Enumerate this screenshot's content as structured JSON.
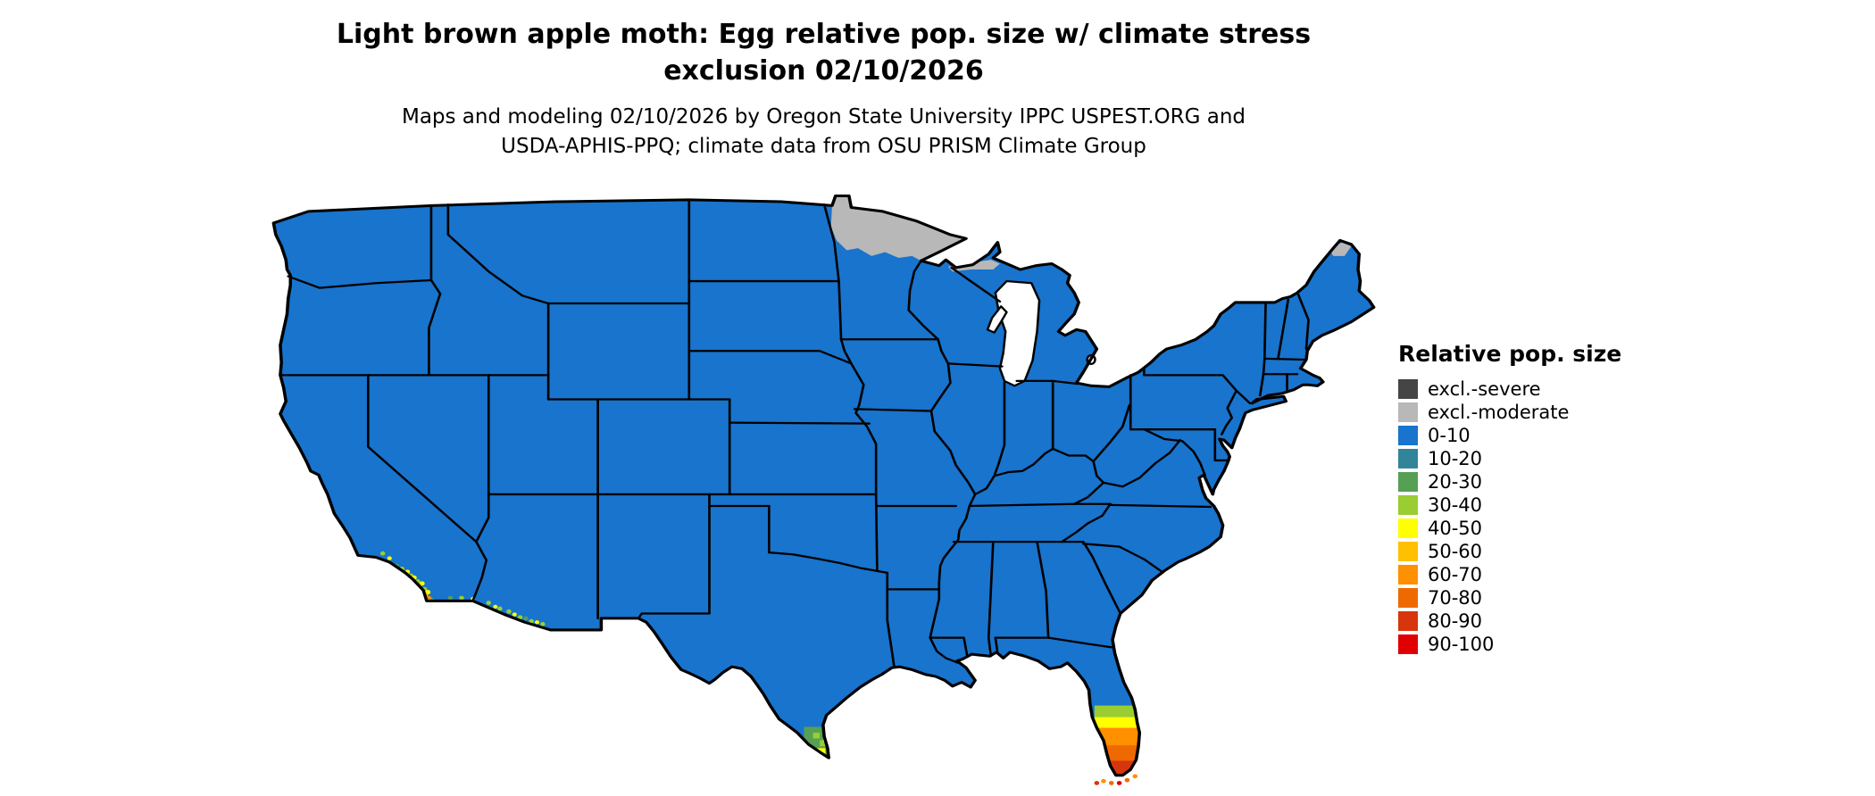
{
  "title": {
    "line1": "Light brown apple moth: Egg relative pop. size w/ climate stress",
    "line2": "exclusion 02/10/2026"
  },
  "subtitle": {
    "line1": "Maps and modeling 02/10/2026 by Oregon State University IPPC USPEST.ORG and",
    "line2": "USDA-APHIS-PPQ; climate data from OSU PRISM Climate Group"
  },
  "legend": {
    "title": "Relative pop. size",
    "items": [
      {
        "label": "excl.-severe",
        "color": "#454545"
      },
      {
        "label": "excl.-moderate",
        "color": "#b8b8b8"
      },
      {
        "label": "0-10",
        "color": "#1874cd"
      },
      {
        "label": "10-20",
        "color": "#31859b"
      },
      {
        "label": "20-30",
        "color": "#55a054"
      },
      {
        "label": "30-40",
        "color": "#9acd32"
      },
      {
        "label": "40-50",
        "color": "#ffff00"
      },
      {
        "label": "50-60",
        "color": "#ffc000"
      },
      {
        "label": "60-70",
        "color": "#ff9000"
      },
      {
        "label": "70-80",
        "color": "#ee6a00"
      },
      {
        "label": "80-90",
        "color": "#d7360c"
      },
      {
        "label": "90-100",
        "color": "#e00000"
      }
    ]
  },
  "map": {
    "border_color": "#000000",
    "water_color": "#ffffff",
    "regions": [
      {
        "name": "contiguous-us",
        "category": "0-10"
      },
      {
        "name": "northern-minnesota",
        "category": "excl.-moderate"
      },
      {
        "name": "lake-superior-south-shore",
        "category": "excl.-moderate"
      },
      {
        "name": "northern-maine",
        "category": "excl.-moderate"
      },
      {
        "name": "southern-california-coast",
        "category": "30-40 to 60-70 patches"
      },
      {
        "name": "southern-arizona-border",
        "category": "20-30 to 40-50 patches"
      },
      {
        "name": "southern-texas-tip",
        "category": "20-30 to 40-50 patches"
      },
      {
        "name": "southern-florida",
        "category": "30-40 to 90-100 gradient"
      },
      {
        "name": "florida-keys",
        "category": "60-70 to 90-100"
      }
    ]
  }
}
